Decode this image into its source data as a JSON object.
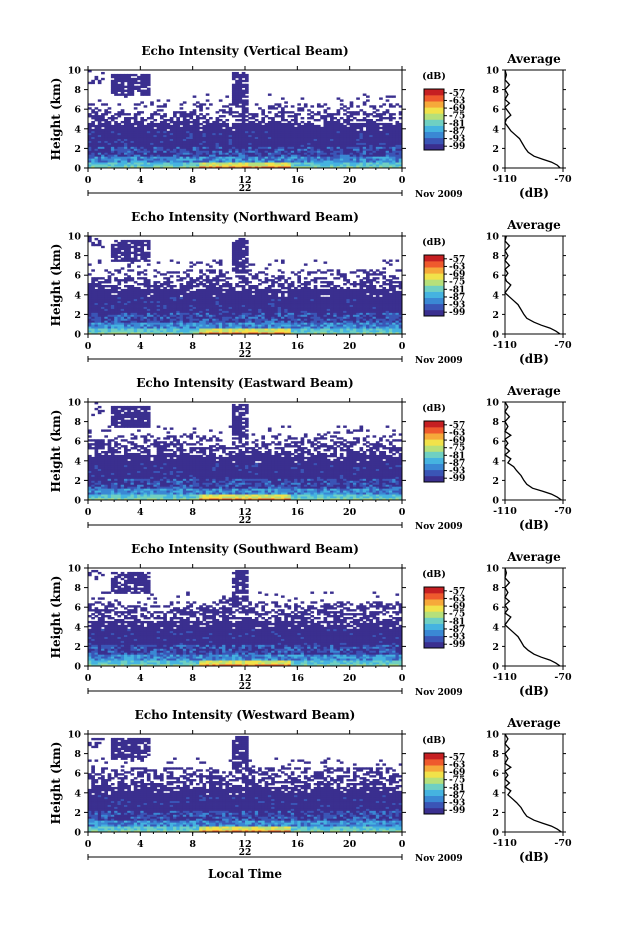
{
  "figure": {
    "xlabel": "Local Time",
    "date_label": "Nov 2009",
    "day_label": "22",
    "cbar_unit": "(dB)",
    "avg_title": "Average",
    "avg_xlabel": "(dB)",
    "colors": [
      "#3a2f8f",
      "#3a55b6",
      "#3a88d4",
      "#45b3e0",
      "#6fd0c2",
      "#b6e07a",
      "#f1e24a",
      "#f6a93a",
      "#ef5a2d",
      "#c61f22"
    ]
  },
  "chart_data": [
    {
      "type": "heatmap",
      "title": "Echo Intensity (Vertical Beam)",
      "ylabel": "Height (km)",
      "xlim": [
        0,
        24
      ],
      "ylim": [
        0,
        10
      ],
      "xticks": [
        "0",
        "4",
        "8",
        "12",
        "16",
        "20",
        "0"
      ],
      "yticks": [
        "0",
        "2",
        "4",
        "6",
        "8",
        "10"
      ],
      "colorbar": {
        "label": "(dB)",
        "ticks": [
          "-57",
          "-63",
          "-69",
          "-75",
          "-81",
          "-87",
          "-93",
          "-99"
        ],
        "range": [
          -102,
          -54
        ]
      },
      "average": {
        "title": "Average",
        "xlabel": "(dB)",
        "xlim": [
          -110,
          -70
        ],
        "xticks": [
          "-110",
          "-70"
        ],
        "yticks": [
          "0",
          "2",
          "4",
          "6",
          "8",
          "10"
        ],
        "profile": [
          [
            -72,
            0
          ],
          [
            -74,
            0.3
          ],
          [
            -78,
            0.6
          ],
          [
            -84,
            0.9
          ],
          [
            -90,
            1.2
          ],
          [
            -94,
            1.6
          ],
          [
            -96,
            2.0
          ],
          [
            -98,
            2.5
          ],
          [
            -100,
            3.0
          ],
          [
            -103,
            3.4
          ],
          [
            -106,
            3.8
          ],
          [
            -108,
            4.2
          ],
          [
            -110,
            4.6
          ],
          [
            -109,
            5.0
          ],
          [
            -106,
            5.4
          ],
          [
            -108,
            5.8
          ],
          [
            -110,
            6.2
          ],
          [
            -107,
            6.6
          ],
          [
            -110,
            7.0
          ],
          [
            -108,
            7.5
          ],
          [
            -110,
            8.0
          ],
          [
            -107,
            8.5
          ],
          [
            -110,
            9.0
          ],
          [
            -109,
            9.5
          ],
          [
            -110,
            10
          ]
        ]
      }
    },
    {
      "type": "heatmap",
      "title": "Echo Intensity (Northward Beam)",
      "ylabel": "Height (km)",
      "xlim": [
        0,
        24
      ],
      "ylim": [
        0,
        10
      ],
      "xticks": [
        "0",
        "4",
        "8",
        "12",
        "16",
        "20",
        "0"
      ],
      "yticks": [
        "0",
        "2",
        "4",
        "6",
        "8",
        "10"
      ],
      "colorbar": {
        "label": "(dB)",
        "ticks": [
          "-57",
          "-63",
          "-69",
          "-75",
          "-81",
          "-87",
          "-93",
          "-99"
        ],
        "range": [
          -102,
          -54
        ]
      },
      "average": {
        "title": "Average",
        "xlabel": "(dB)",
        "xlim": [
          -110,
          -70
        ],
        "xticks": [
          "-110",
          "-70"
        ],
        "yticks": [
          "0",
          "2",
          "4",
          "6",
          "8",
          "10"
        ],
        "profile": [
          [
            -72,
            0
          ],
          [
            -75,
            0.3
          ],
          [
            -79,
            0.6
          ],
          [
            -85,
            0.9
          ],
          [
            -90,
            1.2
          ],
          [
            -95,
            1.6
          ],
          [
            -97,
            2.0
          ],
          [
            -99,
            2.5
          ],
          [
            -101,
            3.0
          ],
          [
            -104,
            3.4
          ],
          [
            -107,
            3.8
          ],
          [
            -110,
            4.2
          ],
          [
            -108,
            4.6
          ],
          [
            -106,
            5.0
          ],
          [
            -109,
            5.4
          ],
          [
            -110,
            5.8
          ],
          [
            -108,
            6.2
          ],
          [
            -110,
            6.6
          ],
          [
            -107,
            7.0
          ],
          [
            -110,
            7.5
          ],
          [
            -108,
            8.0
          ],
          [
            -110,
            8.5
          ],
          [
            -107,
            9.0
          ],
          [
            -110,
            9.5
          ],
          [
            -109,
            10
          ]
        ]
      }
    },
    {
      "type": "heatmap",
      "title": "Echo Intensity (Eastward Beam)",
      "ylabel": "Height (km)",
      "xlim": [
        0,
        24
      ],
      "ylim": [
        0,
        10
      ],
      "xticks": [
        "0",
        "4",
        "8",
        "12",
        "16",
        "20",
        "0"
      ],
      "yticks": [
        "0",
        "2",
        "4",
        "6",
        "8",
        "10"
      ],
      "colorbar": {
        "label": "(dB)",
        "ticks": [
          "-57",
          "-63",
          "-69",
          "-75",
          "-81",
          "-87",
          "-93",
          "-99"
        ],
        "range": [
          -102,
          -54
        ]
      },
      "average": {
        "title": "Average",
        "xlabel": "(dB)",
        "xlim": [
          -110,
          -70
        ],
        "xticks": [
          "-110",
          "-70"
        ],
        "yticks": [
          "0",
          "2",
          "4",
          "6",
          "8",
          "10"
        ],
        "profile": [
          [
            -71,
            0
          ],
          [
            -74,
            0.3
          ],
          [
            -78,
            0.6
          ],
          [
            -84,
            0.9
          ],
          [
            -91,
            1.2
          ],
          [
            -95,
            1.6
          ],
          [
            -97,
            2.0
          ],
          [
            -99,
            2.5
          ],
          [
            -102,
            3.0
          ],
          [
            -104,
            3.4
          ],
          [
            -108,
            3.8
          ],
          [
            -106,
            4.2
          ],
          [
            -110,
            4.6
          ],
          [
            -107,
            5.0
          ],
          [
            -110,
            5.4
          ],
          [
            -108,
            5.8
          ],
          [
            -110,
            6.2
          ],
          [
            -106,
            6.6
          ],
          [
            -110,
            7.0
          ],
          [
            -108,
            7.5
          ],
          [
            -110,
            8.0
          ],
          [
            -107,
            8.5
          ],
          [
            -110,
            9.0
          ],
          [
            -108,
            9.5
          ],
          [
            -110,
            10
          ]
        ]
      }
    },
    {
      "type": "heatmap",
      "title": "Echo Intensity (Southward Beam)",
      "ylabel": "Height (km)",
      "xlim": [
        0,
        24
      ],
      "ylim": [
        0,
        10
      ],
      "xticks": [
        "0",
        "4",
        "8",
        "12",
        "16",
        "20",
        "0"
      ],
      "yticks": [
        "0",
        "2",
        "4",
        "6",
        "8",
        "10"
      ],
      "colorbar": {
        "label": "(dB)",
        "ticks": [
          "-57",
          "-63",
          "-69",
          "-75",
          "-81",
          "-87",
          "-93",
          "-99"
        ],
        "range": [
          -102,
          -54
        ]
      },
      "average": {
        "title": "Average",
        "xlabel": "(dB)",
        "xlim": [
          -110,
          -70
        ],
        "xticks": [
          "-110",
          "-70"
        ],
        "yticks": [
          "0",
          "2",
          "4",
          "6",
          "8",
          "10"
        ],
        "profile": [
          [
            -72,
            0
          ],
          [
            -75,
            0.3
          ],
          [
            -79,
            0.6
          ],
          [
            -85,
            0.9
          ],
          [
            -90,
            1.2
          ],
          [
            -94,
            1.6
          ],
          [
            -97,
            2.0
          ],
          [
            -99,
            2.5
          ],
          [
            -101,
            3.0
          ],
          [
            -104,
            3.4
          ],
          [
            -107,
            3.8
          ],
          [
            -110,
            4.2
          ],
          [
            -108,
            4.6
          ],
          [
            -106,
            5.0
          ],
          [
            -110,
            5.4
          ],
          [
            -108,
            5.8
          ],
          [
            -110,
            6.2
          ],
          [
            -107,
            6.6
          ],
          [
            -110,
            7.0
          ],
          [
            -108,
            7.5
          ],
          [
            -110,
            8.0
          ],
          [
            -107,
            8.5
          ],
          [
            -110,
            9.0
          ],
          [
            -109,
            9.5
          ],
          [
            -110,
            10
          ]
        ]
      }
    },
    {
      "type": "heatmap",
      "title": "Echo Intensity (Westward Beam)",
      "ylabel": "Height (km)",
      "xlim": [
        0,
        24
      ],
      "ylim": [
        0,
        10
      ],
      "xticks": [
        "0",
        "4",
        "8",
        "12",
        "16",
        "20",
        "0"
      ],
      "yticks": [
        "0",
        "2",
        "4",
        "6",
        "8",
        "10"
      ],
      "colorbar": {
        "label": "(dB)",
        "ticks": [
          "-57",
          "-63",
          "-69",
          "-75",
          "-81",
          "-87",
          "-93",
          "-99"
        ],
        "range": [
          -102,
          -54
        ]
      },
      "average": {
        "title": "Average",
        "xlabel": "(dB)",
        "xlim": [
          -110,
          -70
        ],
        "xticks": [
          "-110",
          "-70"
        ],
        "yticks": [
          "0",
          "2",
          "4",
          "6",
          "8",
          "10"
        ],
        "profile": [
          [
            -71,
            0
          ],
          [
            -74,
            0.3
          ],
          [
            -78,
            0.6
          ],
          [
            -84,
            0.9
          ],
          [
            -90,
            1.2
          ],
          [
            -95,
            1.6
          ],
          [
            -97,
            2.0
          ],
          [
            -99,
            2.5
          ],
          [
            -102,
            3.0
          ],
          [
            -105,
            3.4
          ],
          [
            -108,
            3.8
          ],
          [
            -106,
            4.2
          ],
          [
            -110,
            4.6
          ],
          [
            -107,
            5.0
          ],
          [
            -110,
            5.4
          ],
          [
            -108,
            5.8
          ],
          [
            -110,
            6.2
          ],
          [
            -106,
            6.6
          ],
          [
            -110,
            7.0
          ],
          [
            -108,
            7.5
          ],
          [
            -110,
            8.0
          ],
          [
            -107,
            8.5
          ],
          [
            -110,
            9.0
          ],
          [
            -108,
            9.5
          ],
          [
            -110,
            10
          ]
        ]
      }
    }
  ]
}
